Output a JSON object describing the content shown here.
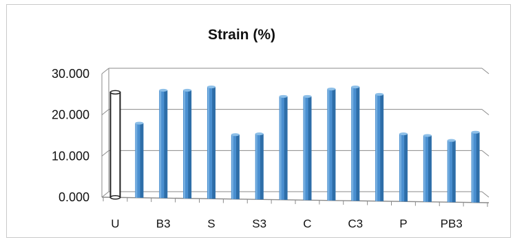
{
  "chart_data": {
    "type": "bar",
    "title": "Strain (%)",
    "xlabel": "",
    "ylabel": "",
    "ylim": [
      0,
      30
    ],
    "yticks": [
      0,
      10,
      20,
      30
    ],
    "ytick_labels": [
      "0.000",
      "10.000",
      "20.000",
      "30.000"
    ],
    "grid": true,
    "legend": "none",
    "categories": [
      "U",
      "",
      "B3",
      "",
      "S",
      "",
      "S3",
      "",
      "C",
      "",
      "C3",
      "",
      "P",
      "",
      "PB3",
      ""
    ],
    "values": [
      25.5,
      18.0,
      26.0,
      26.0,
      26.8,
      15.2,
      15.4,
      24.5,
      24.5,
      26.3,
      26.8,
      25.0,
      15.4,
      15.0,
      13.8,
      15.8
    ],
    "highlighted_index": 0,
    "colors": {
      "bar": "#4a8fd0",
      "bar_dark": "#2e6ea8",
      "bar_light": "#8dbfe8",
      "highlight_fill": "#ffffff",
      "highlight_stroke": "#222222",
      "grid": "#8a8a8a",
      "axis": "#8a8a8a"
    }
  }
}
